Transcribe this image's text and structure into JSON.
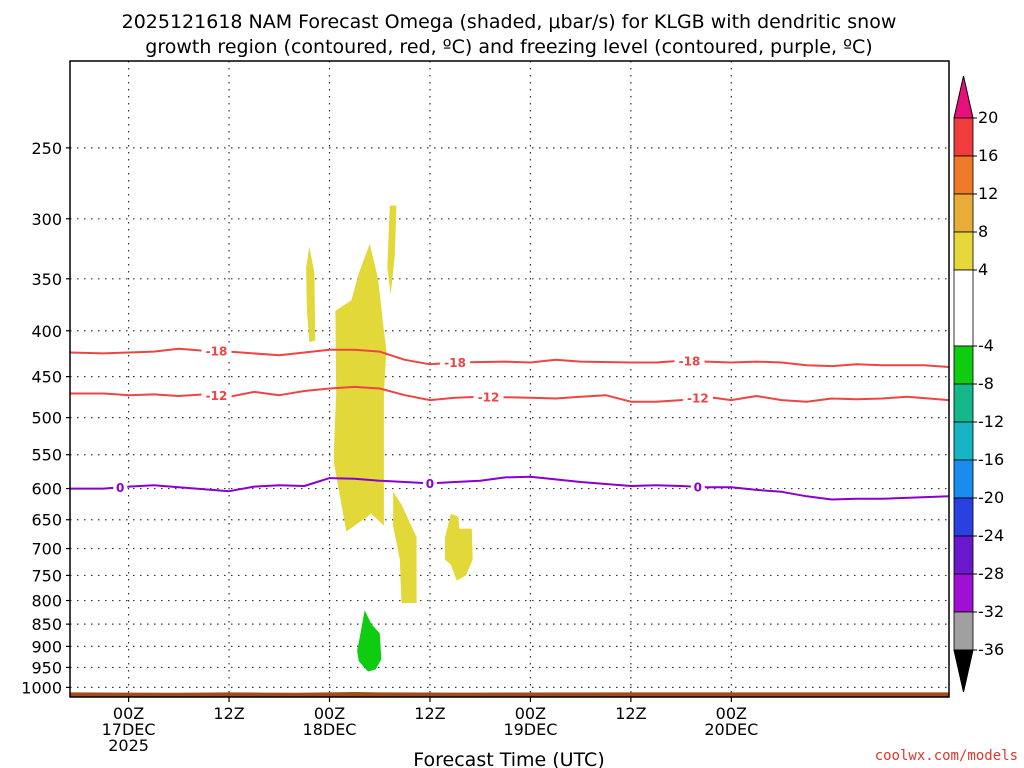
{
  "title": {
    "line1": "2025121618 NAM Forecast Omega (shaded, μbar/s) for KLGB with dendritic snow",
    "line2": "growth region (contoured, red, ºC) and freezing level (contoured, purple, ºC)"
  },
  "credit": "coolwx.com/models",
  "colors": {
    "dgz": "#ee4444",
    "freezing": "#8a00cc",
    "ground": "#9e4e1c",
    "up_shade": "#e3d83a",
    "down_shade": "#10cc10"
  },
  "chart_data": {
    "type": "heatmap",
    "xlabel": "Forecast Time (UTC)",
    "ylabel": "",
    "x_range_hours": [
      -7,
      98
    ],
    "y_range_hPa": [
      200,
      1025
    ],
    "y_ticks": [
      250,
      300,
      350,
      400,
      450,
      500,
      550,
      600,
      650,
      700,
      750,
      800,
      850,
      900,
      950,
      1000
    ],
    "x_ticks": [
      {
        "hour": 0,
        "lines": [
          "00Z",
          "17DEC",
          "2025"
        ]
      },
      {
        "hour": 12,
        "lines": [
          "12Z"
        ]
      },
      {
        "hour": 24,
        "lines": [
          "00Z",
          "18DEC"
        ]
      },
      {
        "hour": 36,
        "lines": [
          "12Z"
        ]
      },
      {
        "hour": 48,
        "lines": [
          "00Z",
          "19DEC"
        ]
      },
      {
        "hour": 60,
        "lines": [
          "12Z"
        ]
      },
      {
        "hour": 72,
        "lines": [
          "00Z",
          "20DEC"
        ]
      }
    ],
    "colorbar": {
      "label_values": [
        20,
        16,
        12,
        8,
        4,
        -4,
        -8,
        -12,
        -16,
        -20,
        -24,
        -28,
        -32,
        -36
      ],
      "bins": [
        {
          "range": [
            16,
            20
          ],
          "color": "#f03c3c"
        },
        {
          "range": [
            12,
            16
          ],
          "color": "#f07a28"
        },
        {
          "range": [
            8,
            12
          ],
          "color": "#e8ac3a"
        },
        {
          "range": [
            4,
            8
          ],
          "color": "#e6d83a"
        },
        {
          "range": [
            -4,
            4
          ],
          "color": "#ffffff"
        },
        {
          "range": [
            -8,
            -4
          ],
          "color": "#10cc10"
        },
        {
          "range": [
            -12,
            -8
          ],
          "color": "#14b88a"
        },
        {
          "range": [
            -16,
            -12
          ],
          "color": "#16b4c4"
        },
        {
          "range": [
            -20,
            -16
          ],
          "color": "#1a8cf0"
        },
        {
          "range": [
            -24,
            -20
          ],
          "color": "#2a40e0"
        },
        {
          "range": [
            -28,
            -24
          ],
          "color": "#6a18cc"
        },
        {
          "range": [
            -32,
            -28
          ],
          "color": "#a010d4"
        },
        {
          "range": [
            -36,
            -32
          ],
          "color": "#a0a0a0"
        }
      ],
      "over_color": "#e8107a",
      "under_color": "#000000"
    },
    "contours": [
      {
        "name": "dgz -18C",
        "label": "-18",
        "color": "#ee4444",
        "points": [
          [
            -7,
            423
          ],
          [
            -3,
            424
          ],
          [
            0,
            423
          ],
          [
            3,
            422
          ],
          [
            6,
            419
          ],
          [
            9,
            421
          ],
          [
            12,
            422
          ],
          [
            18,
            426
          ],
          [
            24,
            420
          ],
          [
            27,
            420
          ],
          [
            30,
            422
          ],
          [
            33,
            431
          ],
          [
            36,
            436
          ],
          [
            39,
            434
          ],
          [
            45,
            433
          ],
          [
            48,
            434
          ],
          [
            51,
            431
          ],
          [
            54,
            433
          ],
          [
            60,
            434
          ],
          [
            63,
            434
          ],
          [
            66,
            432
          ],
          [
            69,
            433
          ],
          [
            72,
            434
          ],
          [
            75,
            433
          ],
          [
            78,
            434
          ],
          [
            81,
            437
          ],
          [
            84,
            438
          ],
          [
            87,
            436
          ],
          [
            90,
            437
          ],
          [
            95,
            437
          ],
          [
            98,
            439
          ]
        ],
        "label_hours": [
          10.5,
          39,
          67
        ]
      },
      {
        "name": "dgz -12C",
        "label": "-12",
        "color": "#ee4444",
        "points": [
          [
            -7,
            470
          ],
          [
            -3,
            470
          ],
          [
            0,
            472
          ],
          [
            3,
            471
          ],
          [
            6,
            473
          ],
          [
            9,
            471
          ],
          [
            12,
            474
          ],
          [
            15,
            468
          ],
          [
            18,
            472
          ],
          [
            21,
            467
          ],
          [
            24,
            464
          ],
          [
            27,
            462
          ],
          [
            30,
            464
          ],
          [
            33,
            472
          ],
          [
            36,
            478
          ],
          [
            39,
            475
          ],
          [
            42,
            474
          ],
          [
            48,
            475
          ],
          [
            51,
            476
          ],
          [
            54,
            474
          ],
          [
            57,
            472
          ],
          [
            60,
            480
          ],
          [
            63,
            480
          ],
          [
            66,
            478
          ],
          [
            69,
            474
          ],
          [
            72,
            478
          ],
          [
            75,
            473
          ],
          [
            78,
            478
          ],
          [
            81,
            480
          ],
          [
            84,
            476
          ],
          [
            87,
            477
          ],
          [
            90,
            476
          ],
          [
            93,
            474
          ],
          [
            98,
            478
          ]
        ],
        "label_hours": [
          10.5,
          43,
          68
        ]
      },
      {
        "name": "freezing level 0C",
        "label": "0",
        "color": "#8a00cc",
        "points": [
          [
            -7,
            600
          ],
          [
            -3,
            600
          ],
          [
            0,
            597
          ],
          [
            3,
            595
          ],
          [
            6,
            598
          ],
          [
            9,
            601
          ],
          [
            12,
            604
          ],
          [
            15,
            597
          ],
          [
            18,
            595
          ],
          [
            21,
            596
          ],
          [
            24,
            584
          ],
          [
            27,
            585
          ],
          [
            30,
            588
          ],
          [
            33,
            590
          ],
          [
            36,
            592
          ],
          [
            39,
            590
          ],
          [
            42,
            588
          ],
          [
            45,
            583
          ],
          [
            48,
            582
          ],
          [
            51,
            586
          ],
          [
            54,
            590
          ],
          [
            57,
            593
          ],
          [
            60,
            596
          ],
          [
            63,
            595
          ],
          [
            66,
            596
          ],
          [
            69,
            598
          ],
          [
            72,
            598
          ],
          [
            75,
            602
          ],
          [
            78,
            605
          ],
          [
            81,
            612
          ],
          [
            84,
            617
          ],
          [
            87,
            616
          ],
          [
            90,
            616
          ],
          [
            98,
            612
          ]
        ],
        "label_hours": [
          -1,
          36,
          68
        ]
      }
    ],
    "shaded_regions": [
      {
        "name": "upward omega core",
        "value_range": "4 to 8",
        "color": "#e3d83a",
        "points": [
          [
            24.5,
            560
          ],
          [
            26,
            670
          ],
          [
            29,
            640
          ],
          [
            30.5,
            660
          ],
          [
            30.5,
            470
          ],
          [
            30.8,
            420
          ],
          [
            30.5,
            400
          ],
          [
            29.8,
            350
          ],
          [
            28.8,
            320
          ],
          [
            27.5,
            345
          ],
          [
            26.6,
            370
          ],
          [
            24.7,
            380
          ],
          [
            24.8,
            470
          ],
          [
            24.6,
            520
          ]
        ]
      },
      {
        "name": "upward omega strip 250",
        "value_range": "4 to 8",
        "color": "#e3d83a",
        "points": [
          [
            31.2,
            290
          ],
          [
            32,
            290
          ],
          [
            31.8,
            330
          ],
          [
            31.3,
            365
          ],
          [
            30.9,
            340
          ]
        ]
      },
      {
        "name": "upward omega small 350",
        "value_range": "4 to 8",
        "color": "#e3d83a",
        "points": [
          [
            21.2,
            340
          ],
          [
            21.6,
            322
          ],
          [
            22.2,
            345
          ],
          [
            22.3,
            410
          ],
          [
            21.6,
            412
          ],
          [
            21.3,
            380
          ]
        ]
      },
      {
        "name": "upward omega lower 700",
        "value_range": "4 to 8",
        "color": "#e3d83a",
        "points": [
          [
            31.6,
            605
          ],
          [
            32.6,
            625
          ],
          [
            34.4,
            680
          ],
          [
            34.4,
            805
          ],
          [
            32.6,
            805
          ],
          [
            32.4,
            720
          ],
          [
            31.6,
            660
          ]
        ]
      },
      {
        "name": "upward omega 12Z",
        "value_range": "4 to 8",
        "color": "#e3d83a",
        "points": [
          [
            37.8,
            680
          ],
          [
            38.5,
            640
          ],
          [
            39.4,
            645
          ],
          [
            39.5,
            665
          ],
          [
            41.0,
            665
          ],
          [
            41.1,
            720
          ],
          [
            40.3,
            750
          ],
          [
            39.2,
            760
          ],
          [
            38.5,
            730
          ],
          [
            37.8,
            720
          ]
        ]
      },
      {
        "name": "downward omega 900",
        "value_range": "-4 to -8",
        "color": "#10cc10",
        "points": [
          [
            28.2,
            820
          ],
          [
            29.0,
            850
          ],
          [
            30.0,
            870
          ],
          [
            30.2,
            930
          ],
          [
            29.5,
            955
          ],
          [
            28.6,
            960
          ],
          [
            27.5,
            935
          ],
          [
            27.3,
            910
          ],
          [
            27.6,
            880
          ]
        ]
      }
    ],
    "ground_top_hPa": 1013
  }
}
